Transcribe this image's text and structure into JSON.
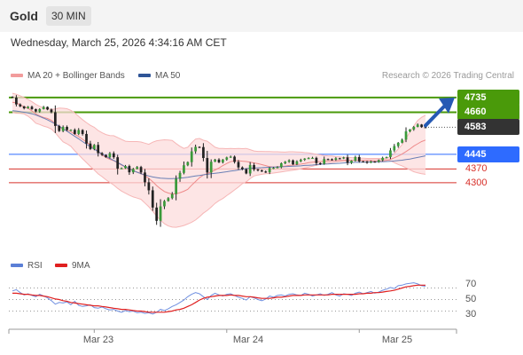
{
  "header": {
    "instrument": "Gold",
    "timeframe": "30 MIN"
  },
  "datetime": "Wednesday, March 25, 2026 4:34:16 AM CET",
  "legend": {
    "items": [
      {
        "label": "MA 20 + Bollinger Bands",
        "color": "#f29c9c"
      },
      {
        "label": "MA 50",
        "color": "#2f5597"
      }
    ],
    "credit": "Research © 2026 Trading Central"
  },
  "levels": [
    {
      "label": "4735",
      "value": 4735,
      "style": "green",
      "color": "#4a9a0a"
    },
    {
      "label": "4660",
      "value": 4660,
      "style": "green",
      "color": "#4a9a0a"
    },
    {
      "label": "4583",
      "value": 4583,
      "style": "current",
      "color": "#333333"
    },
    {
      "label": "4445",
      "value": 4445,
      "style": "blue",
      "color": "#2e6bff"
    },
    {
      "label": "4370",
      "value": 4370,
      "style": "red",
      "color": "#d7302a"
    },
    {
      "label": "4300",
      "value": 4300,
      "style": "red",
      "color": "#d7302a"
    }
  ],
  "rsi_panel": {
    "legend": [
      {
        "label": "RSI",
        "color": "#5b7fd6"
      },
      {
        "label": "9MA",
        "color": "#e02020"
      }
    ],
    "ticks": [
      "70",
      "50",
      "30"
    ]
  },
  "x_labels": [
    "Mar 23",
    "Mar 24",
    "Mar 25"
  ],
  "chart_data": {
    "type": "candlestick",
    "interval": "30 min",
    "ylim": [
      3950,
      4780
    ],
    "close": [
      4735,
      4700,
      4690,
      4680,
      4688,
      4676,
      4664,
      4676,
      4687,
      4674,
      4660,
      4590,
      4564,
      4585,
      4570,
      4570,
      4549,
      4569,
      4549,
      4500,
      4472,
      4493,
      4451,
      4442,
      4430,
      4450,
      4430,
      4372,
      4374,
      4385,
      4353,
      4370,
      4380,
      4352,
      4302,
      4261,
      4173,
      4105,
      4179,
      4206,
      4221,
      4242,
      4320,
      4350,
      4389,
      4405,
      4460,
      4483,
      4482,
      4426,
      4352,
      4407,
      4418,
      4404,
      4418,
      4429,
      4433,
      4406,
      4378,
      4369,
      4347,
      4390,
      4368,
      4363,
      4357,
      4353,
      4375,
      4376,
      4379,
      4399,
      4407,
      4414,
      4394,
      4409,
      4417,
      4423,
      4426,
      4427,
      4400,
      4396,
      4421,
      4420,
      4417,
      4425,
      4424,
      4429,
      4401,
      4412,
      4431,
      4409,
      4408,
      4402,
      4408,
      4406,
      4415,
      4427,
      4431,
      4465,
      4487,
      4504,
      4520,
      4562,
      4572,
      4585,
      4597,
      4584,
      4583
    ],
    "ma20": [
      4711,
      4708,
      4698,
      4687,
      4680,
      4667,
      4651,
      4641,
      4633,
      4628,
      4619,
      4601,
      4585,
      4572,
      4568,
      4561,
      4548,
      4536,
      4522,
      4508,
      4493,
      4477,
      4458,
      4442,
      4429,
      4419,
      4412,
      4401,
      4390,
      4380,
      4370,
      4361,
      4354,
      4347,
      4336,
      4322,
      4305,
      4285,
      4269,
      4255,
      4247,
      4242,
      4243,
      4249,
      4256,
      4266,
      4287,
      4306,
      4325,
      4339,
      4347,
      4355,
      4365,
      4375,
      4387,
      4398,
      4407,
      4412,
      4412,
      4410,
      4408,
      4405,
      4401,
      4397,
      4392,
      4387,
      4382,
      4380,
      4381,
      4383,
      4385,
      4388,
      4390,
      4392,
      4395,
      4398,
      4402,
      4405,
      4407,
      4408,
      4410,
      4411,
      4412,
      4413,
      4413,
      4414,
      4414,
      4414,
      4414,
      4414,
      4413,
      4413,
      4412,
      4411,
      4411,
      4412,
      4414,
      4419,
      4427,
      4436,
      4446,
      4459,
      4472,
      4487,
      4499,
      4510,
      4518
    ],
    "bb_upper": [
      4757,
      4752,
      4744,
      4735,
      4725,
      4714,
      4700,
      4690,
      4682,
      4679,
      4675,
      4677,
      4681,
      4680,
      4678,
      4670,
      4656,
      4639,
      4622,
      4607,
      4593,
      4583,
      4567,
      4555,
      4546,
      4541,
      4540,
      4531,
      4521,
      4512,
      4510,
      4510,
      4510,
      4508,
      4502,
      4496,
      4507,
      4514,
      4517,
      4519,
      4518,
      4516,
      4500,
      4486,
      4475,
      4481,
      4504,
      4523,
      4526,
      4517,
      4512,
      4497,
      4481,
      4475,
      4475,
      4474,
      4475,
      4474,
      4475,
      4474,
      4475,
      4469,
      4462,
      4460,
      4460,
      4459,
      4459,
      4458,
      4458,
      4457,
      4456,
      4458,
      4458,
      4457,
      4456,
      4454,
      4452,
      4449,
      4445,
      4442,
      4439,
      4437,
      4436,
      4433,
      4432,
      4430,
      4430,
      4428,
      4427,
      4426,
      4425,
      4424,
      4424,
      4424,
      4424,
      4423,
      4424,
      4433,
      4449,
      4472,
      4494,
      4527,
      4558,
      4590,
      4618,
      4634,
      4645
    ],
    "bb_lower": [
      4659,
      4655,
      4654,
      4651,
      4640,
      4624,
      4604,
      4597,
      4589,
      4583,
      4574,
      4555,
      4531,
      4509,
      4499,
      4486,
      4463,
      4443,
      4422,
      4403,
      4383,
      4365,
      4345,
      4331,
      4315,
      4301,
      4288,
      4271,
      4257,
      4246,
      4236,
      4227,
      4221,
      4215,
      4196,
      4177,
      4154,
      4129,
      4108,
      4090,
      4079,
      4073,
      4072,
      4076,
      4081,
      4089,
      4098,
      4109,
      4126,
      4144,
      4158,
      4175,
      4194,
      4208,
      4219,
      4234,
      4248,
      4263,
      4278,
      4295,
      4304,
      4321,
      4334,
      4339,
      4343,
      4346,
      4347,
      4349,
      4352,
      4355,
      4358,
      4361,
      4364,
      4367,
      4371,
      4375,
      4379,
      4384,
      4389,
      4393,
      4398,
      4401,
      4403,
      4406,
      4408,
      4410,
      4411,
      4413,
      4414,
      4414,
      4415,
      4416,
      4416,
      4417,
      4417,
      4418,
      4418,
      4412,
      4402,
      4393,
      4386,
      4376,
      4366,
      4356,
      4350,
      4346,
      4343
    ],
    "ma50": [
      4668,
      4666,
      4663,
      4660,
      4656,
      4652,
      4646,
      4638,
      4630,
      4621,
      4611,
      4600,
      4588,
      4576,
      4563,
      4550,
      4537,
      4524,
      4510,
      4497,
      4484,
      4471,
      4459,
      4447,
      4435,
      4424,
      4414,
      4403,
      4392,
      4381,
      4371,
      4362,
      4353,
      4346,
      4340,
      4334,
      4329,
      4326,
      4323,
      4322,
      4321,
      4321,
      4322,
      4323,
      4325,
      4328,
      4331,
      4334,
      4337,
      4340,
      4343,
      4346,
      4348,
      4350,
      4353,
      4356,
      4359,
      4362,
      4365,
      4369,
      4372,
      4374,
      4375,
      4376,
      4377,
      4378,
      4379,
      4380,
      4380,
      4381,
      4382,
      4383,
      4384,
      4385,
      4386,
      4388,
      4389,
      4390,
      4392,
      4394,
      4395,
      4396,
      4397,
      4398,
      4399,
      4401,
      4402,
      4403,
      4404,
      4404,
      4405,
      4405,
      4406,
      4406,
      4407,
      4407,
      4408,
      4409,
      4411,
      4413,
      4415,
      4418,
      4421,
      4425,
      4429,
      4433,
      4437
    ],
    "rsi": [
      65,
      67,
      62,
      58,
      60,
      57,
      55,
      59,
      56,
      53,
      48,
      42,
      45,
      44,
      46,
      41,
      47,
      40,
      38,
      39,
      41,
      36,
      35,
      37,
      34,
      32,
      33,
      30,
      28,
      31,
      29,
      30,
      27,
      28,
      26,
      27,
      25,
      28,
      33,
      31,
      34,
      38,
      41,
      45,
      49,
      55,
      59,
      62,
      60,
      55,
      50,
      57,
      61,
      58,
      56,
      59,
      60,
      57,
      54,
      52,
      49,
      55,
      53,
      50,
      48,
      51,
      56,
      54,
      57,
      58,
      56,
      59,
      60,
      58,
      57,
      61,
      59,
      56,
      58,
      60,
      57,
      59,
      62,
      58,
      56,
      60,
      59,
      57,
      61,
      63,
      60,
      62,
      64,
      61,
      63,
      66,
      68,
      71,
      69,
      74,
      75,
      77,
      78,
      79,
      77,
      74,
      73
    ],
    "rsi_ma": [
      61,
      61,
      60,
      59,
      59,
      58,
      57,
      57,
      56,
      55,
      53,
      51,
      50,
      48,
      47,
      45,
      44,
      43,
      42,
      41,
      40,
      39,
      39,
      38,
      37,
      36,
      35,
      34,
      33,
      33,
      32,
      31,
      30,
      30,
      29,
      28,
      28,
      28,
      28,
      28,
      29,
      30,
      32,
      33,
      35,
      38,
      41,
      45,
      49,
      52,
      54,
      55,
      56,
      57,
      57,
      57,
      58,
      57,
      57,
      56,
      55,
      55,
      54,
      53,
      52,
      52,
      52,
      53,
      54,
      54,
      55,
      56,
      57,
      57,
      57,
      58,
      58,
      58,
      58,
      58,
      58,
      58,
      59,
      59,
      59,
      59,
      59,
      59,
      59,
      60,
      60,
      61,
      61,
      62,
      62,
      63,
      64,
      65,
      66,
      68,
      70,
      72,
      73,
      74,
      75,
      75,
      75
    ],
    "rsi_ylim": [
      0,
      100
    ],
    "x_ticks": [
      {
        "index": 21,
        "label": "Mar 23"
      },
      {
        "index": 55,
        "label": "Mar 24"
      },
      {
        "index": 89,
        "label": "Mar 25"
      }
    ]
  }
}
